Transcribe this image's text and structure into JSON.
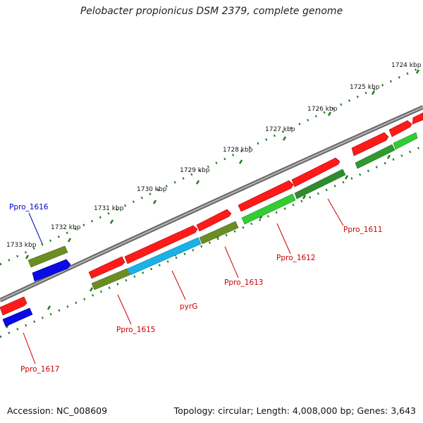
{
  "title": "Pelobacter propionicus DSM 2379, complete genome",
  "accession": "Accession: NC_008609",
  "topology": "Topology: circular; Length: 4,008,000 bp; Genes: 3,643",
  "scale_labels": [
    "1724 kbp",
    "1725 kbp",
    "1726 kbp",
    "1727 kbp",
    "1728 kbp",
    "1729 kbp",
    "1730 kbp",
    "1731 kbp",
    "1732 kbp",
    "1733 kbp"
  ],
  "gene_labels": [
    {
      "text": "Ppro_1611",
      "color": "#cc0000"
    },
    {
      "text": "Ppro_1612",
      "color": "#cc0000"
    },
    {
      "text": "Ppro_1613",
      "color": "#cc0000"
    },
    {
      "text": "pyrG",
      "color": "#cc0000"
    },
    {
      "text": "Ppro_1615",
      "color": "#cc0000"
    },
    {
      "text": "Ppro_1616",
      "color": "#0000cc"
    },
    {
      "text": "Ppro_1617",
      "color": "#cc0000"
    }
  ],
  "colors": {
    "backbone": "#8a8a8a",
    "tick": "#1e7a1e",
    "cds_red": "#ff1a1a",
    "green_light": "#33cc33",
    "green_dark": "#2e8b2e",
    "olive": "#6b8e23",
    "cyan": "#1ab2e6",
    "blue": "#0a0ae6"
  }
}
